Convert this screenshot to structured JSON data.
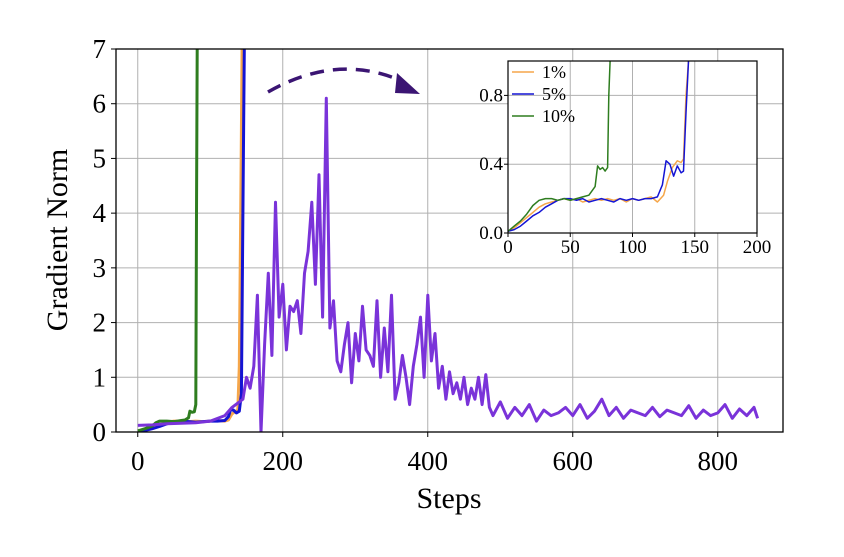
{
  "chart_data": [
    {
      "type": "line",
      "xlabel": "Steps",
      "ylabel": "Gradient Norm",
      "xlim": [
        -30,
        890
      ],
      "ylim": [
        0,
        7
      ],
      "xticks": [
        0,
        200,
        400,
        600,
        800
      ],
      "yticks": [
        0,
        1,
        2,
        3,
        4,
        5,
        6,
        7
      ],
      "grid": true,
      "series": [
        {
          "color": "#f5a64a",
          "x": [
            0,
            10,
            20,
            30,
            40,
            50,
            60,
            70,
            80,
            90,
            100,
            110,
            120,
            125,
            130,
            135,
            138,
            140,
            142,
            144,
            146
          ],
          "y": [
            0.02,
            0.04,
            0.08,
            0.12,
            0.18,
            0.2,
            0.2,
            0.19,
            0.2,
            0.19,
            0.2,
            0.21,
            0.2,
            0.22,
            0.33,
            0.38,
            0.4,
            1.2,
            4.0,
            7.0,
            7.0
          ]
        },
        {
          "color": "#1414d4",
          "x": [
            0,
            10,
            20,
            30,
            40,
            50,
            60,
            70,
            80,
            90,
            100,
            110,
            120,
            125,
            128,
            132,
            136,
            140,
            143,
            145,
            147
          ],
          "y": [
            0.02,
            0.03,
            0.06,
            0.1,
            0.15,
            0.19,
            0.2,
            0.19,
            0.18,
            0.19,
            0.2,
            0.2,
            0.21,
            0.28,
            0.41,
            0.4,
            0.35,
            0.38,
            0.7,
            4.0,
            7.0
          ]
        },
        {
          "color": "#2e7d1f",
          "x": [
            0,
            10,
            20,
            25,
            30,
            40,
            50,
            55,
            60,
            65,
            70,
            72,
            75,
            78,
            80,
            81,
            82
          ],
          "y": [
            0.02,
            0.06,
            0.11,
            0.17,
            0.2,
            0.2,
            0.19,
            0.2,
            0.21,
            0.22,
            0.26,
            0.38,
            0.36,
            0.37,
            0.5,
            4.0,
            7.0
          ]
        },
        {
          "color": "#7a33d9",
          "x": [
            0,
            20,
            40,
            60,
            80,
            100,
            120,
            130,
            140,
            145,
            150,
            155,
            160,
            165,
            170,
            175,
            180,
            185,
            190,
            195,
            200,
            205,
            210,
            215,
            220,
            225,
            230,
            235,
            240,
            245,
            250,
            255,
            260,
            265,
            270,
            275,
            280,
            285,
            290,
            295,
            300,
            305,
            310,
            315,
            320,
            325,
            330,
            335,
            340,
            345,
            350,
            355,
            360,
            365,
            370,
            375,
            380,
            385,
            390,
            395,
            400,
            405,
            410,
            415,
            420,
            425,
            430,
            435,
            440,
            445,
            450,
            455,
            460,
            465,
            470,
            475,
            480,
            485,
            490,
            500,
            510,
            520,
            530,
            540,
            550,
            560,
            570,
            580,
            590,
            600,
            610,
            620,
            630,
            640,
            650,
            660,
            670,
            680,
            690,
            700,
            710,
            720,
            730,
            740,
            750,
            760,
            770,
            780,
            790,
            800,
            810,
            820,
            830,
            840,
            850,
            855
          ],
          "y": [
            0.12,
            0.13,
            0.15,
            0.16,
            0.17,
            0.2,
            0.3,
            0.45,
            0.55,
            0.6,
            1.0,
            0.8,
            1.2,
            2.5,
            0.0,
            1.6,
            2.9,
            1.4,
            4.2,
            2.1,
            2.7,
            1.5,
            2.3,
            2.2,
            2.4,
            1.8,
            2.9,
            3.3,
            4.2,
            2.7,
            4.7,
            2.1,
            6.1,
            1.9,
            2.4,
            1.3,
            1.1,
            1.6,
            2.0,
            0.9,
            1.8,
            1.3,
            2.3,
            1.5,
            1.4,
            1.2,
            2.4,
            1.0,
            1.9,
            1.1,
            2.5,
            0.6,
            0.9,
            1.4,
            1.0,
            0.5,
            1.2,
            1.6,
            2.1,
            1.0,
            2.5,
            1.3,
            1.8,
            0.8,
            1.2,
            0.6,
            1.1,
            0.7,
            0.9,
            0.6,
            1.0,
            0.5,
            0.8,
            0.6,
            1.0,
            0.5,
            1.05,
            0.45,
            0.3,
            0.55,
            0.25,
            0.45,
            0.3,
            0.5,
            0.2,
            0.4,
            0.3,
            0.35,
            0.45,
            0.3,
            0.5,
            0.25,
            0.38,
            0.6,
            0.3,
            0.45,
            0.25,
            0.4,
            0.35,
            0.3,
            0.45,
            0.28,
            0.4,
            0.35,
            0.3,
            0.48,
            0.25,
            0.4,
            0.3,
            0.35,
            0.5,
            0.25,
            0.42,
            0.3,
            0.45,
            0.25
          ]
        }
      ],
      "annotation": "dashed curved arrow pointing to inset",
      "annotation_color": "#3b1573"
    },
    {
      "type": "line",
      "xlabel": "",
      "ylabel": "",
      "xlim": [
        0,
        200
      ],
      "ylim": [
        0,
        1
      ],
      "xticks": [
        0,
        50,
        100,
        150,
        200
      ],
      "yticks": [
        0.0,
        0.4,
        0.8
      ],
      "ytick_labels": [
        "0.0",
        "0.4",
        "0.8"
      ],
      "grid": true,
      "legend_position": "top-left",
      "series": [
        {
          "name": "1%",
          "color": "#f5a64a",
          "x": [
            0,
            5,
            10,
            15,
            20,
            25,
            30,
            35,
            40,
            45,
            50,
            55,
            60,
            65,
            70,
            75,
            80,
            85,
            90,
            95,
            100,
            105,
            110,
            115,
            120,
            125,
            128,
            132,
            136,
            139,
            141,
            143,
            145
          ],
          "y": [
            0.01,
            0.03,
            0.06,
            0.09,
            0.12,
            0.15,
            0.17,
            0.18,
            0.19,
            0.2,
            0.19,
            0.2,
            0.18,
            0.19,
            0.2,
            0.19,
            0.2,
            0.19,
            0.2,
            0.18,
            0.2,
            0.19,
            0.2,
            0.21,
            0.18,
            0.22,
            0.3,
            0.38,
            0.42,
            0.41,
            0.43,
            0.8,
            1.0
          ]
        },
        {
          "name": "5%",
          "color": "#1414d4",
          "x": [
            0,
            5,
            10,
            15,
            20,
            25,
            30,
            35,
            40,
            45,
            50,
            55,
            60,
            65,
            70,
            75,
            80,
            85,
            90,
            95,
            100,
            105,
            110,
            115,
            120,
            124,
            127,
            130,
            133,
            136,
            139,
            141,
            143,
            145
          ],
          "y": [
            0.01,
            0.02,
            0.04,
            0.07,
            0.1,
            0.12,
            0.15,
            0.17,
            0.19,
            0.2,
            0.2,
            0.19,
            0.2,
            0.18,
            0.19,
            0.2,
            0.19,
            0.18,
            0.2,
            0.19,
            0.2,
            0.19,
            0.2,
            0.2,
            0.21,
            0.28,
            0.42,
            0.4,
            0.33,
            0.39,
            0.35,
            0.36,
            0.7,
            1.0
          ]
        },
        {
          "name": "10%",
          "color": "#2e7d1f",
          "x": [
            0,
            5,
            10,
            15,
            20,
            25,
            30,
            35,
            40,
            45,
            50,
            55,
            60,
            65,
            70,
            72,
            74,
            76,
            78,
            80,
            81,
            82
          ],
          "y": [
            0.01,
            0.04,
            0.07,
            0.11,
            0.16,
            0.19,
            0.2,
            0.2,
            0.19,
            0.2,
            0.19,
            0.2,
            0.21,
            0.22,
            0.27,
            0.39,
            0.37,
            0.38,
            0.36,
            0.38,
            0.8,
            1.0
          ]
        }
      ]
    }
  ]
}
